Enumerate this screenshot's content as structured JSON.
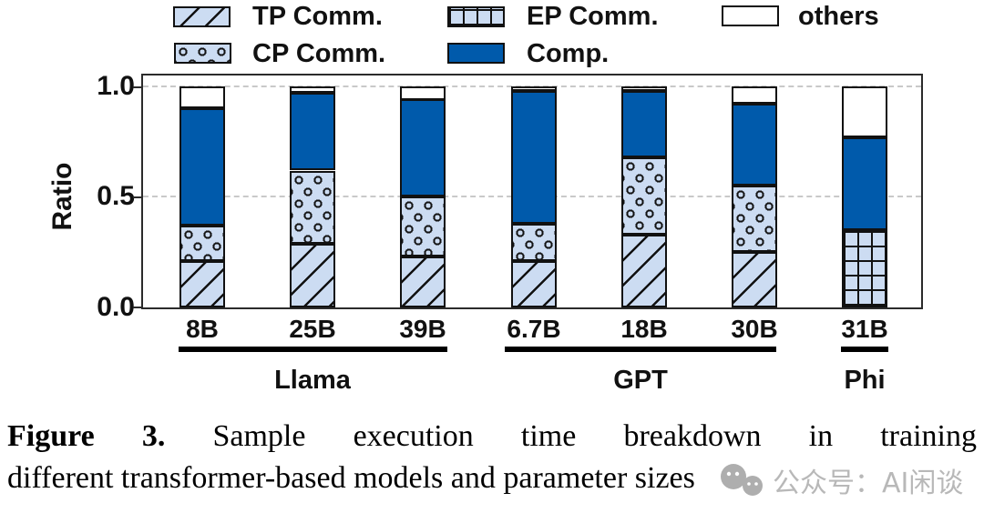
{
  "colors": {
    "comp_blue": "#005aab",
    "light_blue": "#ccdcf2",
    "line_black": "#111111",
    "grid_gray": "#c9c9c9",
    "watermark_gray": "#b5b5b5"
  },
  "legend": {
    "items": [
      {
        "label": "TP Comm.",
        "pattern": "diagonal"
      },
      {
        "label": "EP Comm.",
        "pattern": "grid"
      },
      {
        "label": "others",
        "pattern": "white"
      },
      {
        "label": "CP Comm.",
        "pattern": "dots"
      },
      {
        "label": "Comp.",
        "pattern": "solid"
      }
    ]
  },
  "chart_data": {
    "type": "bar",
    "stacked": true,
    "title": "",
    "xlabel": "",
    "ylabel": "Ratio",
    "ylim": [
      0,
      1.05
    ],
    "yticks": [
      "0.0",
      "0.5",
      "1.0"
    ],
    "grid": "dashed horizontal at 0.5 and 1.0",
    "legend_position": "top",
    "categories": [
      "8B",
      "25B",
      "39B",
      "6.7B",
      "18B",
      "30B",
      "31B"
    ],
    "groups": [
      {
        "label": "Llama",
        "categories": [
          "8B",
          "25B",
          "39B"
        ]
      },
      {
        "label": "GPT",
        "categories": [
          "6.7B",
          "18B",
          "30B"
        ]
      },
      {
        "label": "Phi",
        "categories": [
          "31B"
        ]
      }
    ],
    "series": [
      {
        "name": "TP Comm.",
        "pattern": "diagonal",
        "values": [
          0.21,
          0.29,
          0.23,
          0.21,
          0.33,
          0.25,
          0
        ]
      },
      {
        "name": "EP Comm.",
        "pattern": "grid",
        "values": [
          0,
          0,
          0,
          0,
          0,
          0,
          0.35
        ]
      },
      {
        "name": "CP Comm.",
        "pattern": "dots",
        "values": [
          0.16,
          0.33,
          0.27,
          0.17,
          0.35,
          0.3,
          0
        ]
      },
      {
        "name": "Comp.",
        "pattern": "solid",
        "values": [
          0.53,
          0.35,
          0.44,
          0.6,
          0.3,
          0.37,
          0.42
        ]
      },
      {
        "name": "others",
        "pattern": "white",
        "values": [
          0.1,
          0.03,
          0.06,
          0.02,
          0.02,
          0.08,
          0.23
        ]
      }
    ]
  },
  "caption": {
    "figure_label": "Figure 3.",
    "line1_rest": "Sample execution time breakdown in training",
    "line2": "different transformer-based models and parameter sizes"
  },
  "watermark": {
    "text": "公众号：AI闲谈"
  }
}
